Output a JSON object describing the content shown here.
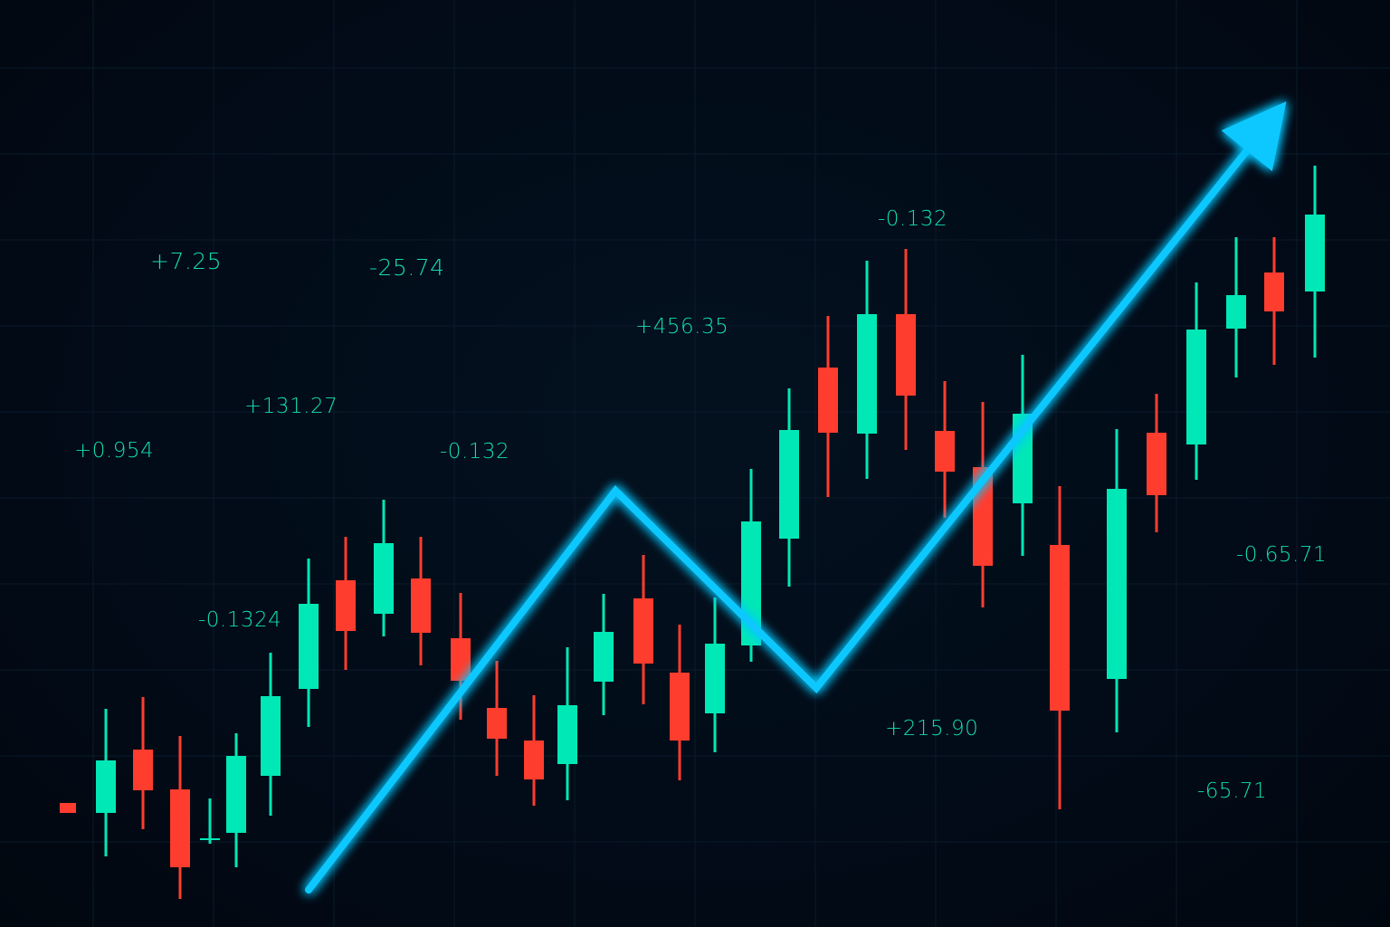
{
  "chart_data": {
    "type": "candlestick",
    "title": "",
    "xlabel": "",
    "ylabel": "",
    "ylim": [
      0,
      102.4
    ],
    "grid": true,
    "legend": "none",
    "colors": {
      "background": "#020b18",
      "up": "#00e8b6",
      "down": "#ff3d2e",
      "trend": "#0fc8ff",
      "label": "#12dcb0",
      "grid": "#0b1a2a"
    },
    "candles": [
      {
        "i": 1,
        "open": 13.7,
        "high": 13.7,
        "low": 12.6,
        "close": 12.6
      },
      {
        "i": 2,
        "open": 12.6,
        "high": 24.1,
        "low": 7.8,
        "close": 18.4
      },
      {
        "i": 3,
        "open": 19.6,
        "high": 25.4,
        "low": 10.8,
        "close": 15.1
      },
      {
        "i": 4,
        "open": 15.2,
        "high": 21.1,
        "low": 3.1,
        "close": 6.6
      },
      {
        "i": 5,
        "open": 9.6,
        "high": 14.2,
        "low": 9.2,
        "close": 9.8
      },
      {
        "i": 6,
        "open": 10.4,
        "high": 21.4,
        "low": 6.6,
        "close": 18.9
      },
      {
        "i": 7,
        "open": 16.7,
        "high": 30.3,
        "low": 12.3,
        "close": 25.5
      },
      {
        "i": 8,
        "open": 26.3,
        "high": 40.7,
        "low": 22.1,
        "close": 35.7
      },
      {
        "i": 9,
        "open": 38.3,
        "high": 43.1,
        "low": 28.4,
        "close": 32.7
      },
      {
        "i": 10,
        "open": 34.6,
        "high": 47.2,
        "low": 32.1,
        "close": 42.4
      },
      {
        "i": 11,
        "open": 38.5,
        "high": 43.1,
        "low": 28.9,
        "close": 32.5
      },
      {
        "i": 12,
        "open": 31.9,
        "high": 36.9,
        "low": 22.9,
        "close": 27.2
      },
      {
        "i": 13,
        "open": 24.2,
        "high": 29.4,
        "low": 16.7,
        "close": 20.8
      },
      {
        "i": 14,
        "open": 20.6,
        "high": 25.6,
        "low": 13.4,
        "close": 16.3
      },
      {
        "i": 15,
        "open": 18.0,
        "high": 30.9,
        "low": 14.0,
        "close": 24.5
      },
      {
        "i": 16,
        "open": 27.1,
        "high": 36.8,
        "low": 23.4,
        "close": 32.6
      },
      {
        "i": 17,
        "open": 36.3,
        "high": 41.1,
        "low": 24.6,
        "close": 29.1
      },
      {
        "i": 18,
        "open": 28.1,
        "high": 33.4,
        "low": 16.2,
        "close": 20.6
      },
      {
        "i": 19,
        "open": 23.6,
        "high": 36.4,
        "low": 19.3,
        "close": 31.3
      },
      {
        "i": 20,
        "open": 31.1,
        "high": 50.6,
        "low": 29.3,
        "close": 44.8
      },
      {
        "i": 21,
        "open": 42.9,
        "high": 59.5,
        "low": 37.6,
        "close": 54.9
      },
      {
        "i": 22,
        "open": 61.8,
        "high": 67.5,
        "low": 47.5,
        "close": 54.6
      },
      {
        "i": 23,
        "open": 54.5,
        "high": 73.6,
        "low": 49.5,
        "close": 67.7
      },
      {
        "i": 24,
        "open": 67.7,
        "high": 74.9,
        "low": 52.7,
        "close": 58.7
      },
      {
        "i": 25,
        "open": 54.8,
        "high": 60.3,
        "low": 45.2,
        "close": 50.3
      },
      {
        "i": 26,
        "open": 50.8,
        "high": 58.0,
        "low": 35.3,
        "close": 39.9
      },
      {
        "i": 27,
        "open": 46.8,
        "high": 63.2,
        "low": 41.0,
        "close": 56.7
      },
      {
        "i": 28,
        "open": 42.2,
        "high": 48.7,
        "low": 13.0,
        "close": 23.9
      },
      {
        "i": 29,
        "open": 27.4,
        "high": 55.0,
        "low": 21.5,
        "close": 48.4
      },
      {
        "i": 30,
        "open": 54.6,
        "high": 58.9,
        "low": 43.6,
        "close": 47.7
      },
      {
        "i": 31,
        "open": 53.3,
        "high": 71.2,
        "low": 49.4,
        "close": 66.0
      },
      {
        "i": 32,
        "open": 66.1,
        "high": 76.2,
        "low": 60.7,
        "close": 69.8
      },
      {
        "i": 33,
        "open": 72.3,
        "high": 76.2,
        "low": 62.1,
        "close": 68.0
      },
      {
        "i": 34,
        "open": 70.2,
        "high": 84.1,
        "low": 62.9,
        "close": 78.7
      }
    ],
    "trend_line": [
      {
        "i": 8,
        "value": 4.1
      },
      {
        "i": 16.3,
        "value": 48.2
      },
      {
        "i": 21.7,
        "value": 26.4
      },
      {
        "i": 33.3,
        "value": 91.2
      }
    ],
    "trend_arrow": true,
    "annotations": [
      "+7.25",
      "-25.74",
      "+456.35",
      "-0.132",
      "+131.27",
      "+0.954",
      "-0.132",
      "-0.1324",
      "+215.90",
      "-0.65.71",
      "-65.71"
    ]
  }
}
